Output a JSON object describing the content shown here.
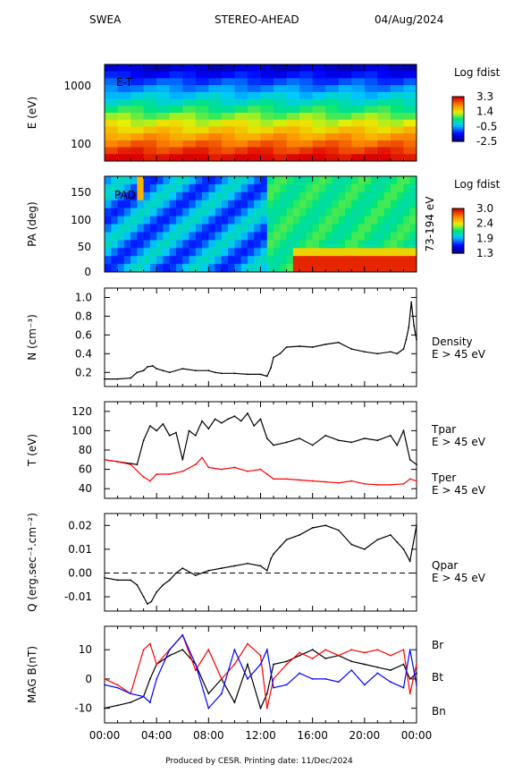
{
  "header": {
    "instrument": "SWEA",
    "spacecraft": "STEREO-AHEAD",
    "date": "04/Aug/2024"
  },
  "footer": "Produced by CESR.   Printing date: 11/Dec/2024",
  "colors": {
    "black": "#000000",
    "red": "#ff0000",
    "blue": "#0000ff"
  },
  "chart_data": [
    {
      "type": "heatmap",
      "ylabel": "E (eV)",
      "annotation": "E-T",
      "y_scale": "log",
      "yticks": [
        "1000",
        "100"
      ],
      "colorbar": {
        "title": "Log fdist",
        "ticks": [
          "3.3",
          "1.4",
          "-0.5",
          "-2.5"
        ]
      },
      "x_range_hours": [
        0,
        24
      ]
    },
    {
      "type": "heatmap",
      "ylabel": "PA (deg)",
      "annotation": "PAD",
      "right_label": "73-194 eV",
      "yticks": [
        "150",
        "100",
        "50",
        "0"
      ],
      "colorbar": {
        "title": "Log fdist",
        "ticks": [
          "3.0",
          "2.4",
          "1.9",
          "1.3"
        ]
      },
      "x_range_hours": [
        0,
        24
      ]
    },
    {
      "type": "line",
      "ylabel": "N (cm⁻³)",
      "yticks": [
        "1.0",
        "0.8",
        "0.6",
        "0.4",
        "0.2"
      ],
      "ylim": [
        0.05,
        1.1
      ],
      "series": [
        {
          "name": "Density",
          "subtitle": "E > 45 eV",
          "color": "#000000",
          "x": [
            0,
            1,
            2,
            2.5,
            3,
            3.3,
            3.7,
            4,
            4.5,
            5,
            6,
            7,
            8,
            8.5,
            9,
            10,
            11,
            12,
            12.5,
            12.8,
            13,
            13.5,
            14,
            15,
            16,
            17,
            18,
            19,
            20,
            21,
            22,
            22.5,
            23,
            23.2,
            23.4,
            23.6,
            23.8,
            24
          ],
          "y": [
            0.13,
            0.13,
            0.14,
            0.2,
            0.22,
            0.26,
            0.27,
            0.24,
            0.22,
            0.2,
            0.24,
            0.22,
            0.22,
            0.2,
            0.19,
            0.19,
            0.18,
            0.18,
            0.16,
            0.25,
            0.36,
            0.4,
            0.47,
            0.48,
            0.47,
            0.5,
            0.52,
            0.45,
            0.42,
            0.4,
            0.42,
            0.4,
            0.45,
            0.55,
            0.68,
            0.95,
            0.7,
            0.55
          ]
        }
      ]
    },
    {
      "type": "line",
      "ylabel": "T (eV)",
      "yticks": [
        "120",
        "100",
        "80",
        "60",
        "40"
      ],
      "ylim": [
        30,
        130
      ],
      "series": [
        {
          "name": "Tpar",
          "subtitle": "E > 45 eV",
          "color": "#000000",
          "x": [
            0,
            1,
            2,
            2.5,
            3,
            3.5,
            4,
            4.5,
            5,
            5.5,
            6,
            6.5,
            7,
            7.5,
            8,
            8.5,
            9,
            9.5,
            10,
            10.5,
            11,
            11.5,
            12,
            12.5,
            13,
            14,
            15,
            16,
            17,
            18,
            19,
            20,
            21,
            22,
            22.5,
            23,
            23.5,
            24
          ],
          "y": [
            70,
            68,
            66,
            65,
            90,
            105,
            100,
            107,
            95,
            98,
            70,
            100,
            95,
            110,
            102,
            112,
            108,
            112,
            115,
            110,
            118,
            105,
            112,
            92,
            85,
            88,
            92,
            85,
            95,
            90,
            88,
            92,
            90,
            95,
            85,
            100,
            70,
            65
          ]
        },
        {
          "name": "Tper",
          "subtitle": "E > 45 eV",
          "color": "#ff0000",
          "x": [
            0,
            1,
            2,
            3,
            3.5,
            4,
            5,
            6,
            7,
            7.5,
            8,
            9,
            10,
            11,
            12,
            12.5,
            13,
            14,
            15,
            16,
            17,
            18,
            19,
            20,
            21,
            22,
            23,
            23.5,
            24
          ],
          "y": [
            70,
            68,
            65,
            52,
            48,
            55,
            55,
            58,
            65,
            72,
            62,
            60,
            62,
            58,
            60,
            55,
            50,
            50,
            49,
            48,
            47,
            46,
            48,
            45,
            44,
            44,
            45,
            50,
            48
          ]
        }
      ]
    },
    {
      "type": "line",
      "ylabel": "Q (erg.sec⁻¹.cm⁻²)",
      "yticks": [
        "0.02",
        "0.01",
        "0.00",
        "-0.01"
      ],
      "ylim": [
        -0.016,
        0.025
      ],
      "zero_line": true,
      "series": [
        {
          "name": "Qpar",
          "subtitle": "E > 45 eV",
          "color": "#000000",
          "x": [
            0,
            1,
            2,
            2.5,
            3,
            3.3,
            3.6,
            4,
            4.5,
            5,
            5.5,
            6,
            7,
            8,
            9,
            10,
            11,
            12,
            12.5,
            12.8,
            13,
            13.5,
            14,
            15,
            16,
            17,
            18,
            19,
            20,
            21,
            22,
            22.5,
            23,
            23.5,
            24
          ],
          "y": [
            -0.002,
            -0.003,
            -0.003,
            -0.005,
            -0.01,
            -0.013,
            -0.012,
            -0.008,
            -0.005,
            -0.003,
            0.0,
            0.002,
            -0.001,
            0.001,
            0.002,
            0.003,
            0.004,
            0.003,
            0.001,
            0.006,
            0.008,
            0.011,
            0.014,
            0.016,
            0.019,
            0.02,
            0.018,
            0.012,
            0.01,
            0.014,
            0.016,
            0.013,
            0.01,
            0.005,
            0.02
          ]
        }
      ]
    },
    {
      "type": "line",
      "ylabel": "MAG B(nT)",
      "xlabel": "",
      "xticks": [
        "00:00",
        "04:00",
        "08:00",
        "12:00",
        "16:00",
        "20:00",
        "00:00"
      ],
      "yticks": [
        "10",
        "0",
        "-10"
      ],
      "ylim": [
        -15,
        18
      ],
      "series": [
        {
          "name": "Br",
          "color": "#000000",
          "x": [
            0,
            1,
            2,
            3,
            3.5,
            4,
            5,
            6,
            7,
            8,
            9,
            10,
            11,
            12,
            12.5,
            13,
            14,
            15,
            16,
            17,
            18,
            19,
            20,
            21,
            22,
            23,
            23.5,
            24
          ],
          "y": [
            -10,
            -9,
            -8,
            -6,
            0,
            5,
            8,
            10,
            5,
            -5,
            0,
            -8,
            5,
            -10,
            -5,
            5,
            6,
            8,
            10,
            7,
            8,
            6,
            5,
            4,
            3,
            5,
            0,
            2
          ]
        },
        {
          "name": "Bt",
          "color": "#ff0000",
          "x": [
            0,
            1,
            2,
            3,
            3.5,
            4,
            5,
            6,
            7,
            8,
            9,
            10,
            11,
            12,
            12.5,
            13,
            14,
            15,
            16,
            17,
            18,
            19,
            20,
            21,
            22,
            23,
            23.5,
            24
          ],
          "y": [
            0,
            -2,
            -5,
            10,
            12,
            5,
            10,
            15,
            3,
            10,
            0,
            5,
            12,
            8,
            -10,
            0,
            5,
            9,
            7,
            10,
            8,
            10,
            9,
            10,
            8,
            10,
            -5,
            5
          ]
        },
        {
          "name": "Bn",
          "color": "#0000ff",
          "x": [
            0,
            1,
            2,
            3,
            3.5,
            4,
            5,
            6,
            7,
            8,
            9,
            10,
            11,
            12,
            12.5,
            13,
            14,
            15,
            16,
            17,
            18,
            19,
            20,
            21,
            22,
            23,
            23.5,
            24
          ],
          "y": [
            -2,
            -3,
            -5,
            -6,
            -8,
            0,
            10,
            15,
            5,
            -10,
            -5,
            10,
            0,
            5,
            10,
            -3,
            -2,
            2,
            0,
            0,
            -1,
            3,
            -2,
            2,
            -1,
            -3,
            10,
            -2
          ]
        }
      ]
    }
  ]
}
